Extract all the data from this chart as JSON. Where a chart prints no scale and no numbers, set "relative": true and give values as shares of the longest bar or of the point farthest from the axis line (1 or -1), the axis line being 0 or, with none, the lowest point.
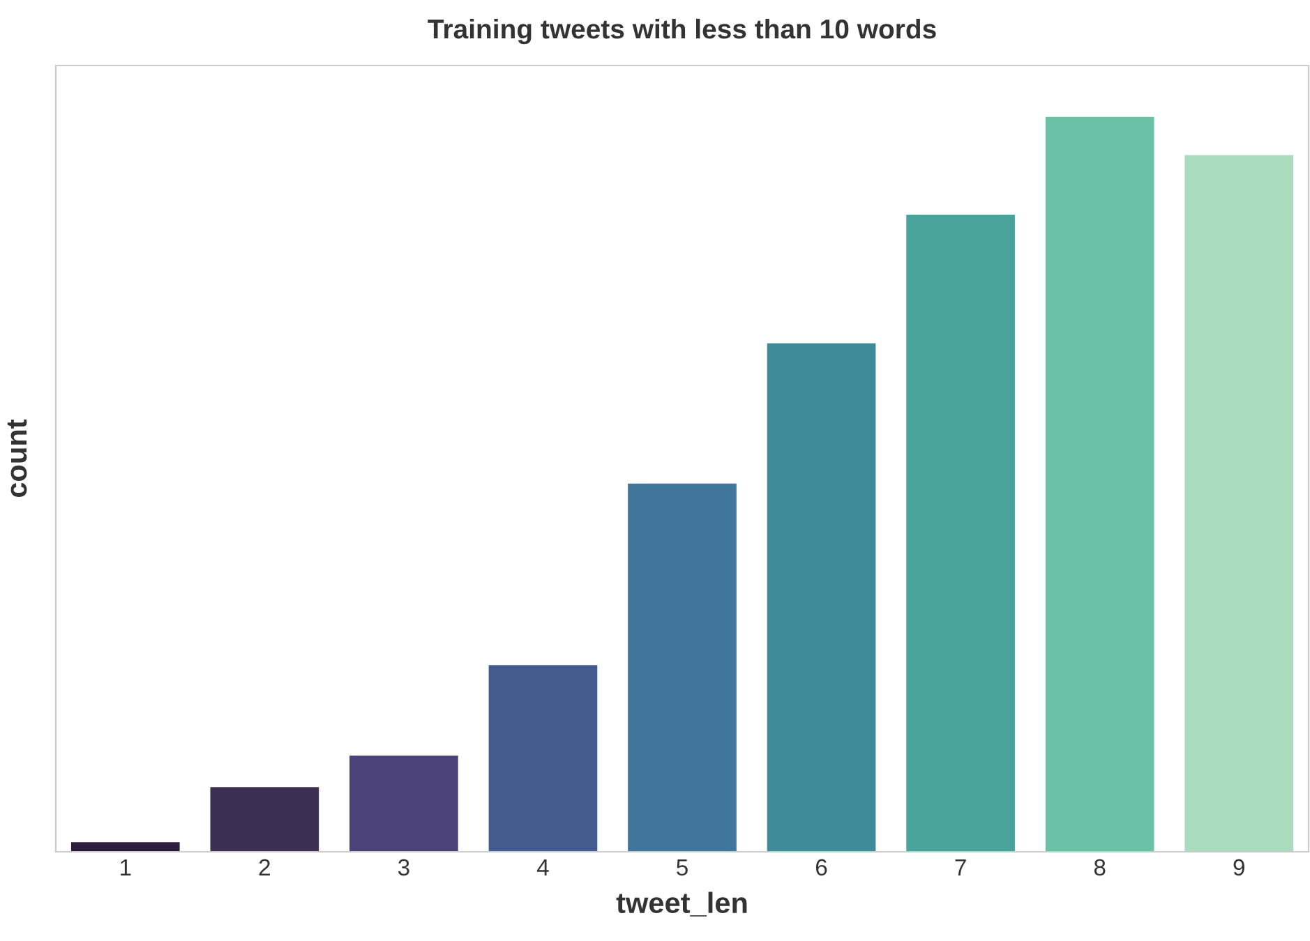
{
  "chart_data": {
    "type": "bar",
    "title": "Training tweets with less than 10 words",
    "xlabel": "tweet_len",
    "ylabel": "count",
    "categories": [
      "1",
      "2",
      "3",
      "4",
      "5",
      "6",
      "7",
      "8",
      "9"
    ],
    "values": [
      0.013,
      0.088,
      0.131,
      0.254,
      0.501,
      0.692,
      0.867,
      1,
      0.948
    ],
    "colors": [
      "#2d1e3e",
      "#3d2e54",
      "#4a4278",
      "#435c8e",
      "#40769a",
      "#3f8c98",
      "#49a39b",
      "#6cc0a6",
      "#abdbbd"
    ],
    "relative": true,
    "tick_labels": "x",
    "grid": false,
    "legend": false
  }
}
